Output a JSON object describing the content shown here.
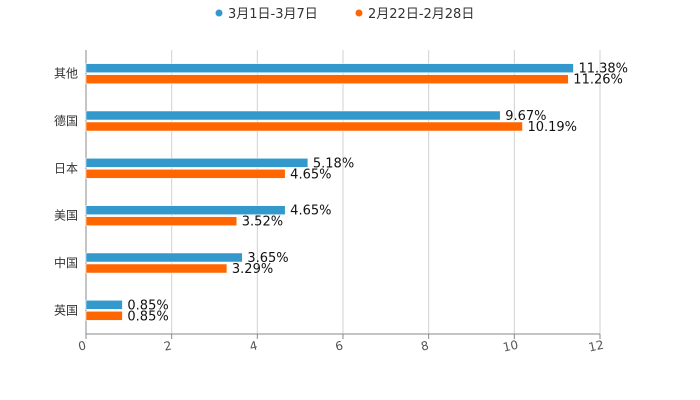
{
  "chart_data": {
    "type": "bar",
    "orientation": "horizontal",
    "title": "",
    "xlabel": "",
    "ylabel": "",
    "xlim": [
      0,
      12
    ],
    "ticks": [
      0,
      2,
      4,
      6,
      8,
      10,
      12
    ],
    "grid": true,
    "legend_position": "top-center",
    "categories": [
      "其他",
      "德国",
      "日本",
      "美国",
      "中国",
      "英国"
    ],
    "series": [
      {
        "name": "3月1日-3月7日",
        "color": "#3399cc",
        "values": [
          11.38,
          9.67,
          5.18,
          4.65,
          3.65,
          0.85
        ],
        "labels": [
          "11.38%",
          "9.67%",
          "5.18%",
          "4.65%",
          "3.65%",
          "0.85%"
        ]
      },
      {
        "name": "2月22日-2月28日",
        "color": "#ff6600",
        "values": [
          11.26,
          10.19,
          4.65,
          3.52,
          3.29,
          0.85
        ],
        "labels": [
          "11.26%",
          "10.19%",
          "4.65%",
          "3.52%",
          "3.29%",
          "0.85%"
        ]
      }
    ]
  }
}
